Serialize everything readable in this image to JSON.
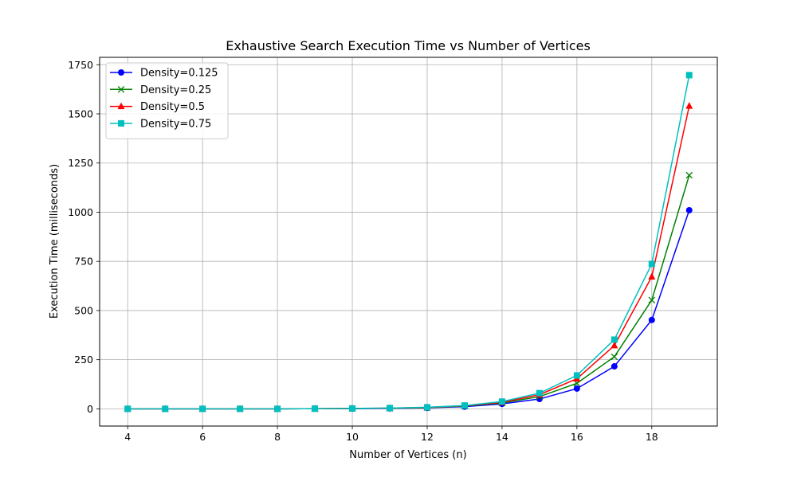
{
  "chart_data": {
    "type": "line",
    "title": "Exhaustive Search Execution Time vs Number of Vertices",
    "xlabel": "Number of Vertices (n)",
    "ylabel": "Execution Time (milliseconds)",
    "xlim": [
      3.25,
      19.75
    ],
    "ylim": [
      -87.5,
      1787.5
    ],
    "xticks": [
      4,
      6,
      8,
      10,
      12,
      14,
      16,
      18
    ],
    "yticks": [
      0,
      250,
      500,
      750,
      1000,
      1250,
      1500,
      1750
    ],
    "grid": true,
    "legend_position": "top-left",
    "x": [
      4,
      5,
      6,
      7,
      8,
      9,
      10,
      11,
      12,
      13,
      14,
      15,
      16,
      17,
      18,
      19
    ],
    "series": [
      {
        "name": "Density=0.125",
        "color": "#0000ff",
        "marker": "circle",
        "values": [
          0,
          0,
          0,
          0,
          0,
          0.5,
          1,
          2,
          5,
          11,
          25,
          50,
          103,
          216,
          452,
          1010
        ]
      },
      {
        "name": "Density=0.25",
        "color": "#008000",
        "marker": "x",
        "values": [
          0,
          0,
          0,
          0,
          0,
          0.5,
          1.5,
          3,
          6,
          14,
          30,
          62,
          130,
          265,
          553,
          1188
        ]
      },
      {
        "name": "Density=0.5",
        "color": "#ff0000",
        "marker": "triangle",
        "values": [
          0,
          0,
          0,
          0,
          0,
          1,
          2,
          3.5,
          7,
          16,
          33,
          72,
          153,
          322,
          672,
          1540
        ]
      },
      {
        "name": "Density=0.75",
        "color": "#00bfbf",
        "marker": "square",
        "values": [
          0,
          0,
          0,
          0,
          0,
          1,
          2,
          4,
          8,
          17,
          37,
          80,
          170,
          352,
          737,
          1697
        ]
      }
    ]
  }
}
